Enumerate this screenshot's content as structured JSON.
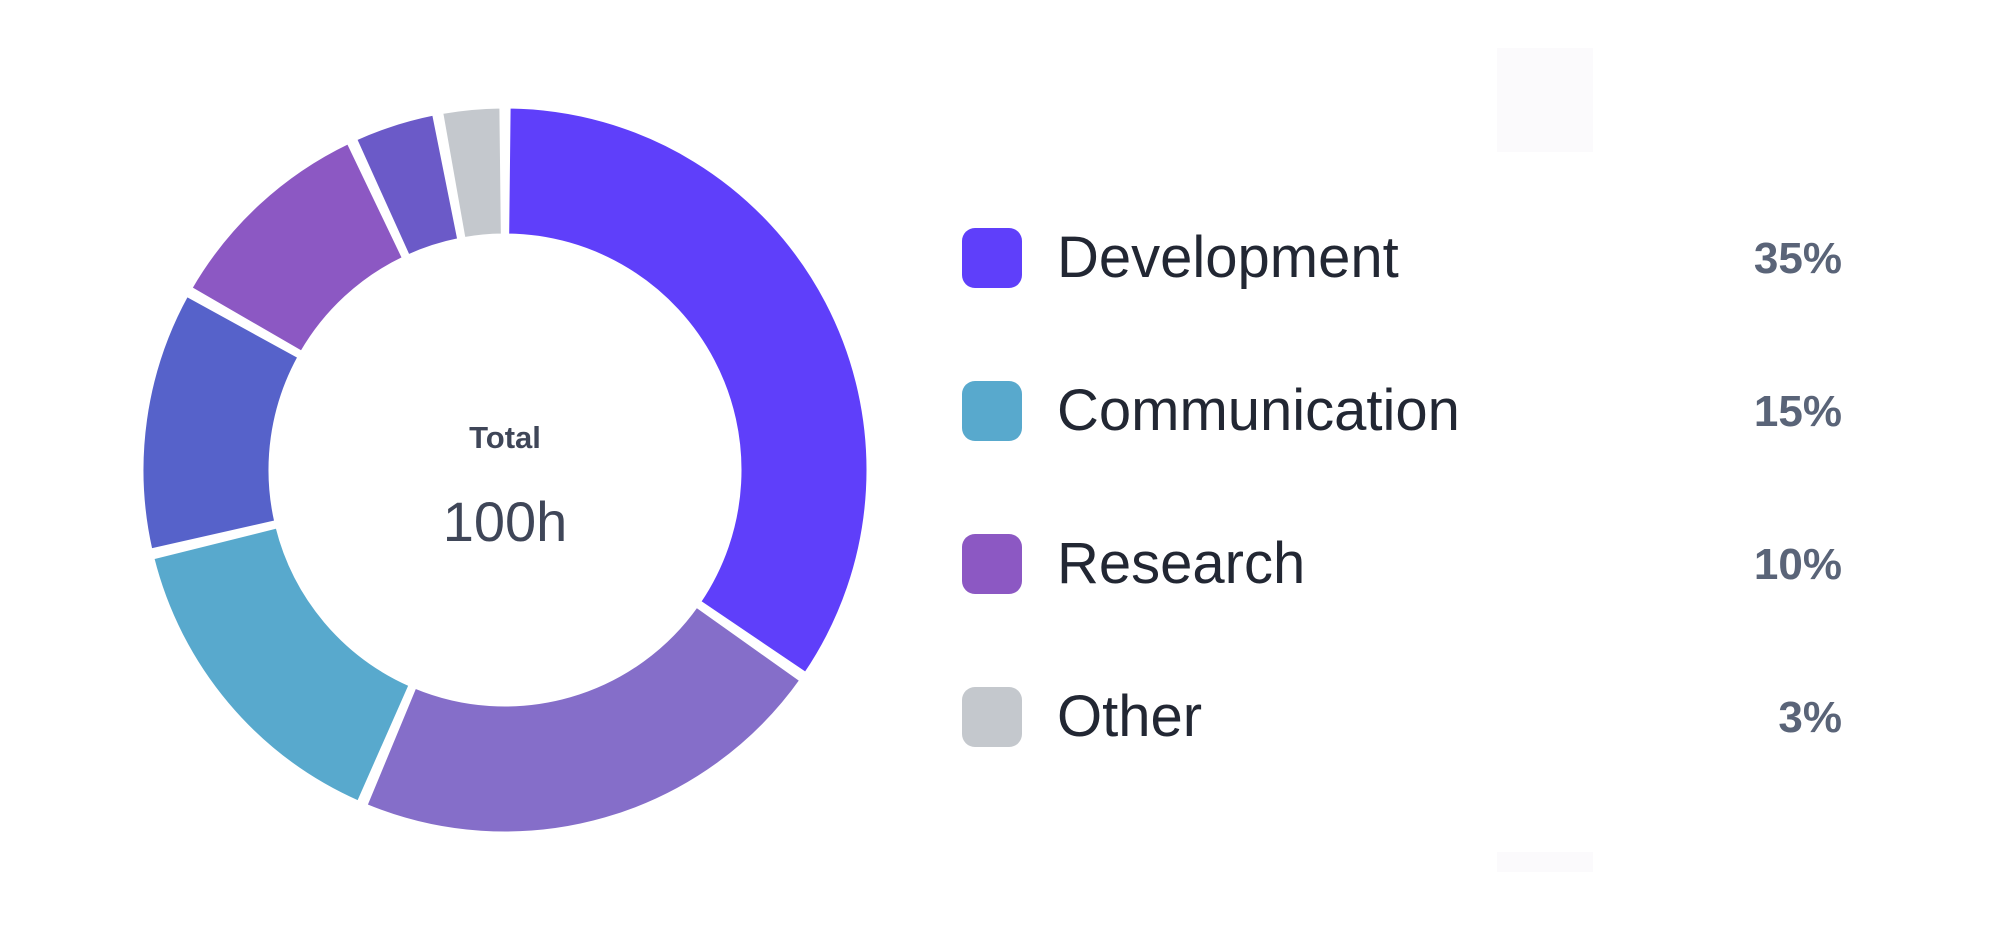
{
  "chart_data": {
    "type": "pie",
    "donut": true,
    "center_title": "Total",
    "center_value": "100h",
    "start_angle_deg": 0,
    "slices": [
      {
        "value": 35,
        "color": "#5f3ffa"
      },
      {
        "value": 22,
        "color": "#856ec9"
      },
      {
        "value": 15,
        "color": "#58a9cd"
      },
      {
        "value": 12,
        "color": "#5662ca"
      },
      {
        "value": 10,
        "color": "#8c58c3"
      },
      {
        "value": 4,
        "color": "#6b5ac8"
      },
      {
        "value": 3,
        "color": "#c4c8cd"
      }
    ],
    "legend": {
      "position": "right",
      "items": [
        {
          "label": "Development",
          "percent": "35%",
          "color": "#5f3ffa"
        },
        {
          "label": "Communication",
          "percent": "15%",
          "color": "#58a9cd"
        },
        {
          "label": "Research",
          "percent": "10%",
          "color": "#8c58c3"
        },
        {
          "label": "Other",
          "percent": "3%",
          "color": "#c4c8cd"
        }
      ]
    }
  }
}
